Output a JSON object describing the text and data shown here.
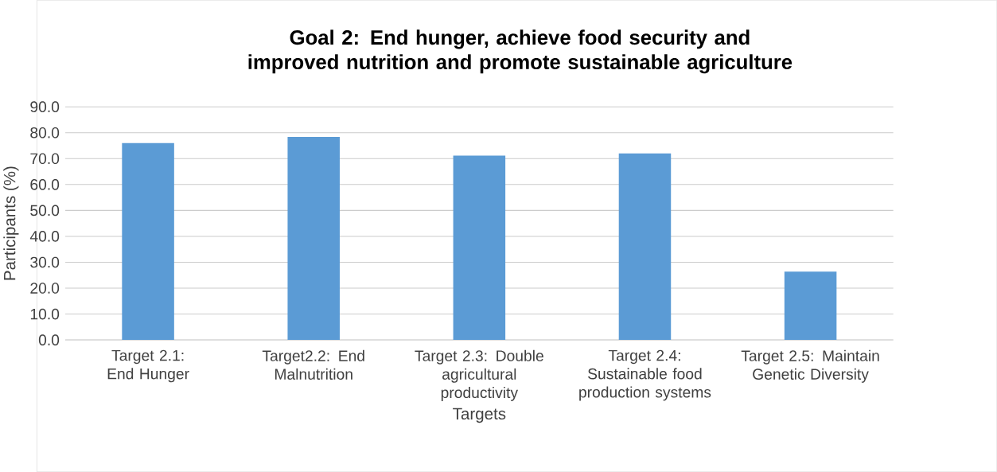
{
  "chart_data": {
    "type": "bar",
    "title": "Goal 2: End hunger, achieve food security and improved nutrition and promote sustainable agriculture",
    "xlabel": "Targets",
    "ylabel": "Participants (%)",
    "categories": [
      "Target 2.1: End Hunger",
      "Target2.2: End Malnutrition",
      "Target 2.3: Double agricultural productivity",
      "Target 2.4: Sustainable food production systems",
      "Target 2.5: Maintain Genetic Diversity"
    ],
    "values": [
      76.0,
      78.4,
      71.2,
      72.0,
      26.4
    ],
    "color": "#5b9bd5",
    "ylim": [
      0,
      90
    ],
    "yticks": [
      {
        "value": 0,
        "label": "0.0"
      },
      {
        "value": 10,
        "label": "10.0"
      },
      {
        "value": 20,
        "label": "20.0"
      },
      {
        "value": 30,
        "label": "30.0"
      },
      {
        "value": 40,
        "label": "40.0"
      },
      {
        "value": 50,
        "label": "50.0"
      },
      {
        "value": 60,
        "label": "60.0"
      },
      {
        "value": 70,
        "label": "70.0"
      },
      {
        "value": 80,
        "label": "80.0"
      },
      {
        "value": 90,
        "label": "90.0"
      }
    ],
    "grid": "y"
  }
}
